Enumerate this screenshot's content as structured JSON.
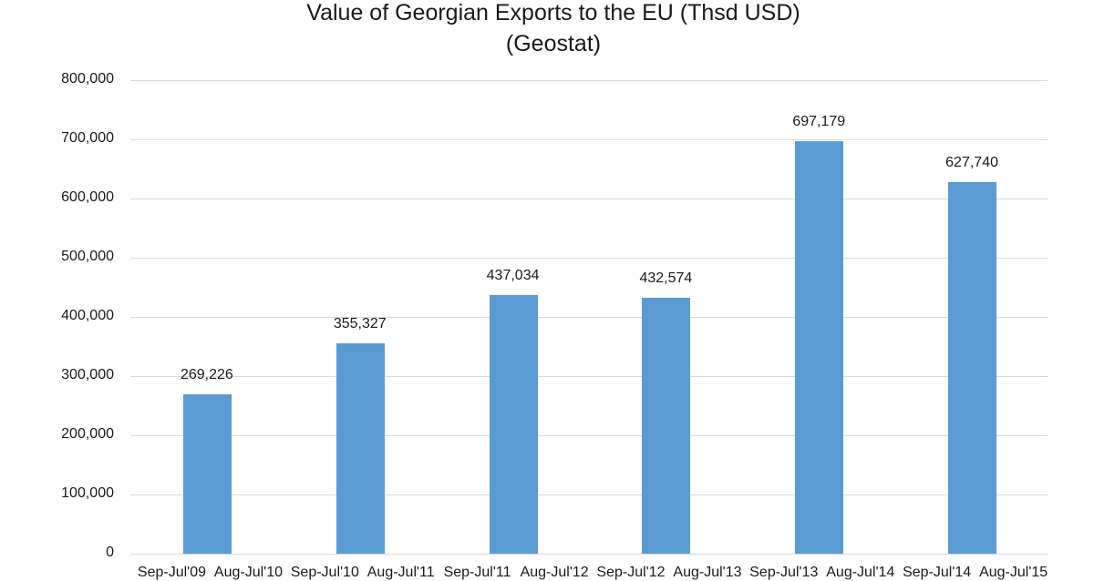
{
  "chart_data": {
    "type": "bar",
    "title": "Value of Georgian Exports to the EU (Thsd USD)",
    "subtitle": "(Geostat)",
    "xlabel": "",
    "ylabel": "",
    "ylim": [
      0,
      800000
    ],
    "yticks": [
      "0",
      "100,000",
      "200,000",
      "300,000",
      "400,000",
      "500,000",
      "600,000",
      "700,000",
      "800,000"
    ],
    "grid": true,
    "legend": "none",
    "categories": [
      "Sep-Jul'09 - Aug-Jul'10",
      "Sep-Jul'10 - Aug-Jul'11",
      "Sep-Jul'11 - Aug-Jul'12",
      "Sep-Jul'12 - Aug-Jul'13",
      "Sep-Jul'13 - Aug-Jul'14",
      "Sep-Jul'14 - Aug-Jul'15"
    ],
    "values": [
      269226,
      355327,
      437034,
      432574,
      697179,
      627740
    ],
    "data_labels": [
      "269,226",
      "355,327",
      "437,034",
      "432,574",
      "697,179",
      "627,740"
    ],
    "bar_color": "#5b9bd5"
  },
  "xtick_labels": [
    "Sep-Jul'09",
    "Aug-Jul'10",
    "Sep-Jul'10",
    "Aug-Jul'11",
    "Sep-Jul'11",
    "Aug-Jul'12",
    "Sep-Jul'12",
    "Aug-Jul'13",
    "Sep-Jul'13",
    "Aug-Jul'14",
    "Sep-Jul'14",
    "Aug-Jul'15"
  ]
}
